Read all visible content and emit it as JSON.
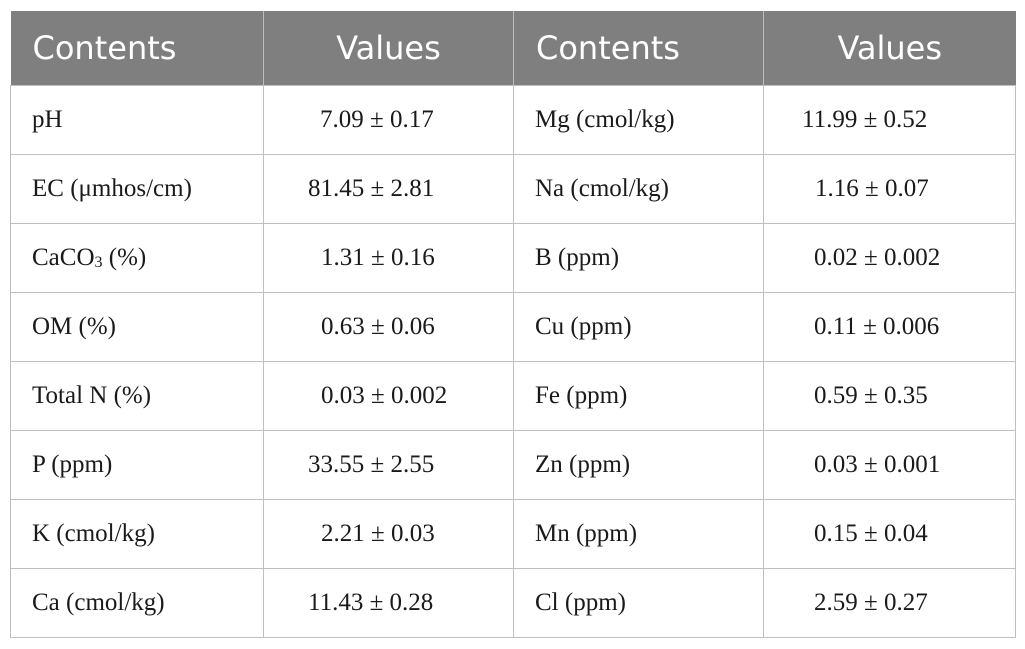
{
  "header": {
    "col1": "Contents",
    "col2": "Values",
    "col3": "Contents",
    "col4": "Values"
  },
  "rows": [
    {
      "c1": "pH",
      "v1": "7.09 ± 0.17",
      "c2": "Mg (cmol/kg)",
      "v2": "11.99 ± 0.52"
    },
    {
      "c1": "EC (μmhos/cm)",
      "v1": "81.45 ± 2.81",
      "c2": "Na (cmol/kg)",
      "v2": "1.16 ± 0.07"
    },
    {
      "c1_pre": "CaCO",
      "c1_sub": "3",
      "c1_post": " (%)",
      "v1": "1.31 ± 0.16",
      "c2": "B (ppm)",
      "v2": "0.02 ± 0.002"
    },
    {
      "c1": "OM (%)",
      "v1": "0.63 ± 0.06",
      "c2": "Cu (ppm)",
      "v2": "0.11 ± 0.006"
    },
    {
      "c1": "Total N (%)",
      "v1": "0.03 ± 0.002",
      "c2": "Fe (ppm)",
      "v2": "0.59 ± 0.35"
    },
    {
      "c1": "P (ppm)",
      "v1": "33.55 ± 2.55",
      "c2": "Zn (ppm)",
      "v2": "0.03 ± 0.001"
    },
    {
      "c1": "K (cmol/kg)",
      "v1": "2.21 ± 0.03",
      "c2": "Mn (ppm)",
      "v2": "0.15 ± 0.04"
    },
    {
      "c1": "Ca (cmol/kg)",
      "v1": "11.43 ± 0.28",
      "c2": "Cl (ppm)",
      "v2": "2.59 ± 0.27"
    }
  ],
  "colors": {
    "header_bg": "#7f7f7f",
    "header_text": "#ffffff",
    "grid": "#bfbfbf"
  }
}
